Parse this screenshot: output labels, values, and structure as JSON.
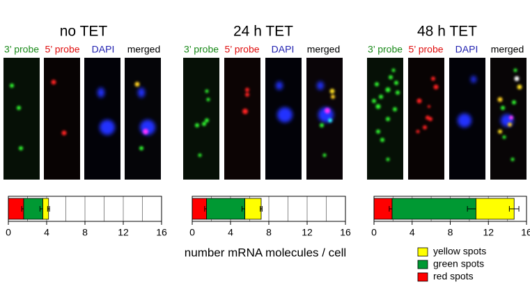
{
  "panels": [
    {
      "title": "no TET",
      "channels": [
        {
          "label": "3’ probe",
          "color": "#1a8a1a"
        },
        {
          "label": "5’ probe",
          "color": "#e01010"
        },
        {
          "label": "DAPI",
          "color": "#2020b0"
        },
        {
          "label": "merged",
          "color": "#000000"
        }
      ]
    },
    {
      "title": "24 h TET",
      "channels": [
        {
          "label": "3’ probe",
          "color": "#1a8a1a"
        },
        {
          "label": "5’ probe",
          "color": "#e01010"
        },
        {
          "label": "DAPI",
          "color": "#2020b0"
        },
        {
          "label": "merged",
          "color": "#000000"
        }
      ]
    },
    {
      "title": "48 h TET",
      "channels": [
        {
          "label": "3’ probe",
          "color": "#1a8a1a"
        },
        {
          "label": "5’ probe",
          "color": "#e01010"
        },
        {
          "label": "DAPI",
          "color": "#2020b0"
        },
        {
          "label": "merged",
          "color": "#000000"
        }
      ]
    }
  ],
  "chart_data": [
    {
      "type": "stacked-hbar",
      "categories": [
        null
      ],
      "xlim": [
        0,
        16
      ],
      "xticks": [
        0,
        4,
        8,
        12,
        16
      ],
      "xgrid": [
        2,
        4,
        6,
        8,
        10,
        12,
        14
      ],
      "series": [
        {
          "name": "red spots",
          "color": "#ff0000",
          "values": [
            1.6
          ],
          "errors": [
            0.2
          ]
        },
        {
          "name": "green spots",
          "color": "#009933",
          "values": [
            2.0
          ],
          "errors": [
            0.3
          ]
        },
        {
          "name": "yellow spots",
          "color": "#ffff00",
          "values": [
            0.6
          ],
          "errors": [
            0.1
          ]
        }
      ]
    },
    {
      "type": "stacked-hbar",
      "categories": [
        null
      ],
      "xlim": [
        0,
        16
      ],
      "xticks": [
        0,
        4,
        8,
        12,
        16
      ],
      "xgrid": [
        2,
        4,
        6,
        8,
        10,
        12,
        14
      ],
      "xlabel": "number mRNA molecules / cell",
      "series": [
        {
          "name": "red spots",
          "color": "#ff0000",
          "values": [
            1.5
          ],
          "errors": [
            0.2
          ]
        },
        {
          "name": "green spots",
          "color": "#009933",
          "values": [
            4.0
          ],
          "errors": [
            0.3
          ]
        },
        {
          "name": "yellow spots",
          "color": "#ffff00",
          "values": [
            1.7
          ],
          "errors": [
            0.1
          ]
        }
      ]
    },
    {
      "type": "stacked-hbar",
      "categories": [
        null
      ],
      "xlim": [
        0,
        16
      ],
      "xticks": [
        0,
        4,
        8,
        12,
        16
      ],
      "xgrid": [
        2,
        4,
        6,
        8,
        10,
        12,
        14
      ],
      "series": [
        {
          "name": "red spots",
          "color": "#ff0000",
          "values": [
            1.9
          ],
          "errors": [
            0.3
          ]
        },
        {
          "name": "green spots",
          "color": "#009933",
          "values": [
            8.8
          ],
          "errors": [
            0.9
          ]
        },
        {
          "name": "yellow spots",
          "color": "#ffff00",
          "values": [
            4.0
          ],
          "errors": [
            0.5
          ]
        }
      ]
    }
  ]
}
